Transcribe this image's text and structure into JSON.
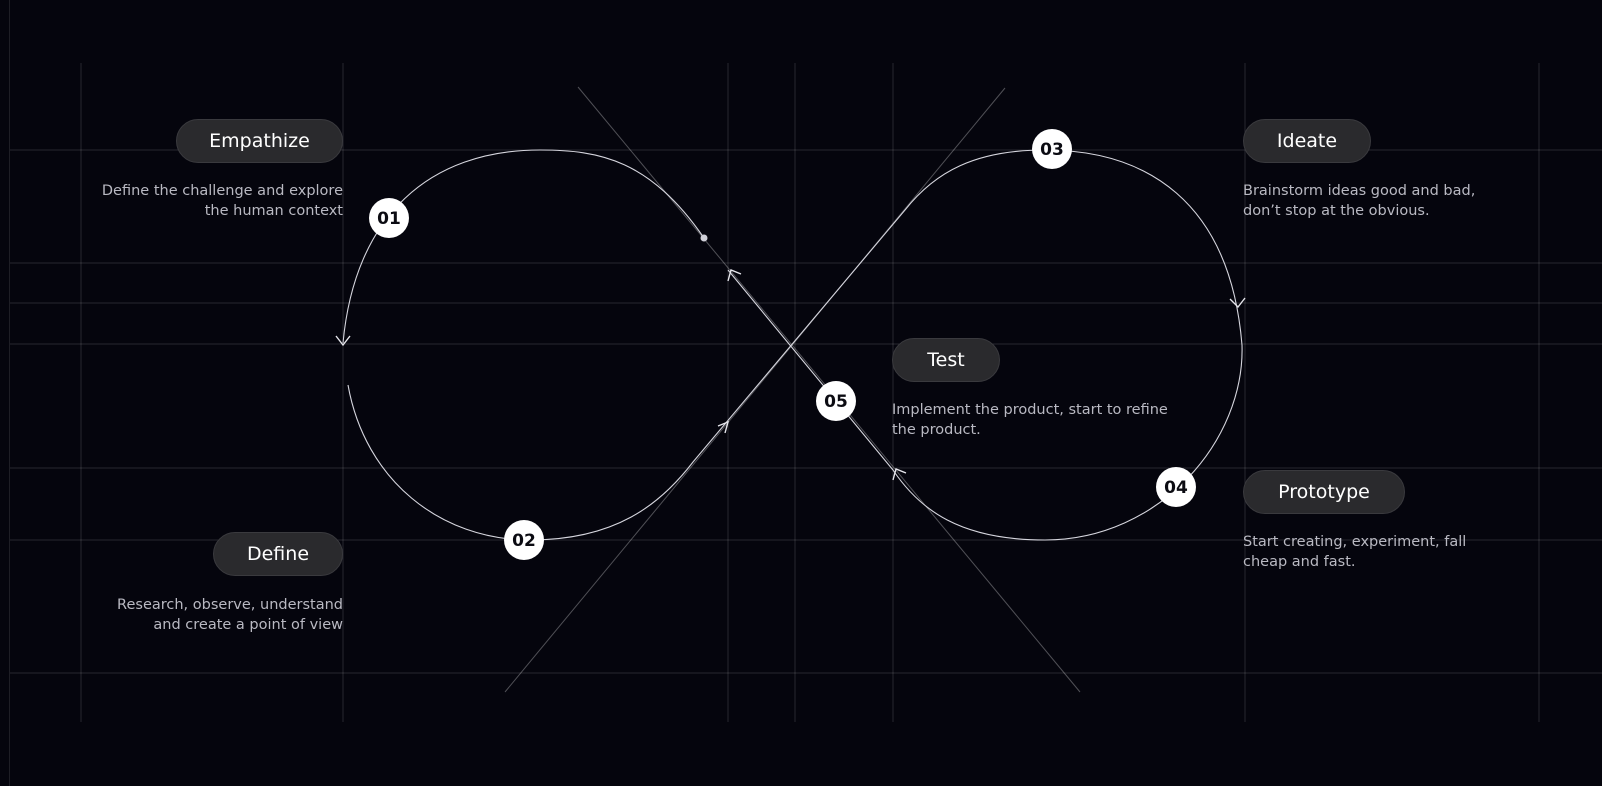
{
  "stages": [
    {
      "id": "empathize",
      "number": "01",
      "label": "Empathize",
      "desc_line1": "Define the challenge and explore",
      "desc_line2": "the human context"
    },
    {
      "id": "define",
      "number": "02",
      "label": "Define",
      "desc_line1": "Research, observe, understand",
      "desc_line2": "and create a point of view"
    },
    {
      "id": "ideate",
      "number": "03",
      "label": "Ideate",
      "desc_line1": "Brainstorm ideas good and bad,",
      "desc_line2": "don’t stop at the obvious."
    },
    {
      "id": "prototype",
      "number": "04",
      "label": "Prototype",
      "desc_line1": "Start creating, experiment, fall",
      "desc_line2": "cheap and fast."
    },
    {
      "id": "test",
      "number": "05",
      "label": "Test",
      "desc_line1": "Implement the product, start to refine",
      "desc_line2": "the product."
    }
  ],
  "colors": {
    "background": "#05050d",
    "pill": "#2a2a2d",
    "badge": "#ffffff",
    "line": "#d6d6de"
  }
}
